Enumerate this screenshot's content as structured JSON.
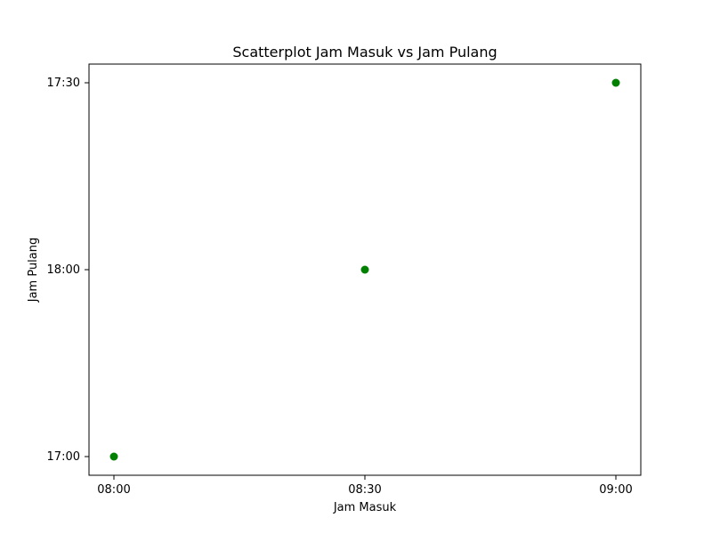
{
  "chart_data": {
    "type": "scatter",
    "title": "Scatterplot Jam Masuk vs Jam Pulang",
    "xlabel": "Jam Masuk",
    "ylabel": "Jam Pulang",
    "x": [
      "08:00",
      "08:30",
      "09:00"
    ],
    "y": [
      "17:00",
      "18:00",
      "17:30"
    ],
    "x_ticks": [
      "08:00",
      "08:30",
      "09:00"
    ],
    "y_ticks": [
      "17:00",
      "18:00",
      "17:30"
    ],
    "x_scale": "categorical",
    "y_scale": "categorical",
    "grid": false,
    "legend": "none",
    "point_color": "#008000"
  }
}
